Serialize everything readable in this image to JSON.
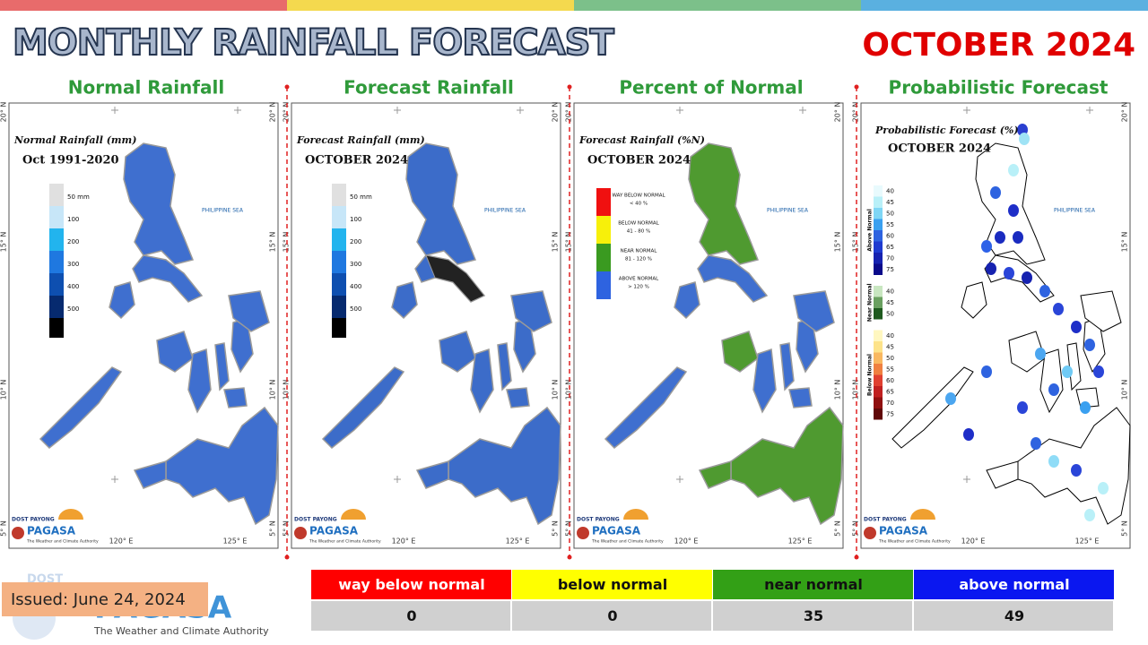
{
  "header": {
    "title": "MONTHLY RAINFALL FORECAST",
    "period": "OCTOBER 2024"
  },
  "panels": [
    {
      "title": "Normal Rainfall",
      "map_title": "Normal Rainfall (mm)",
      "map_subtitle": "Oct 1991-2020",
      "legend": [
        "50 mm",
        "100",
        "200",
        "300",
        "400",
        "500"
      ]
    },
    {
      "title": "Forecast Rainfall",
      "map_title": "Forecast Rainfall (mm)",
      "map_subtitle": "OCTOBER 2024",
      "legend": [
        "50 mm",
        "100",
        "200",
        "300",
        "400",
        "500"
      ]
    },
    {
      "title": "Percent of Normal",
      "map_title": "Forecast Rainfall (%N)",
      "map_subtitle": "OCTOBER 2024",
      "legend": [
        {
          "name": "WAY BELOW NORMAL",
          "range": "< 40 %"
        },
        {
          "name": "BELOW NORMAL",
          "range": "41 - 80 %"
        },
        {
          "name": "NEAR NORMAL",
          "range": "81 - 120 %"
        },
        {
          "name": "ABOVE NORMAL",
          "range": "> 120 %"
        }
      ]
    },
    {
      "title": "Probabilistic Forecast",
      "map_title": "Probabilistic Forecast (%)",
      "map_subtitle": "OCTOBER 2024",
      "legend_groups": [
        {
          "name": "Above Normal",
          "levels": [
            "40",
            "45",
            "50",
            "55",
            "60",
            "65",
            "70",
            "75"
          ]
        },
        {
          "name": "Near Normal",
          "levels": [
            "40",
            "45",
            "50"
          ]
        },
        {
          "name": "Below Normal",
          "levels": [
            "40",
            "45",
            "50",
            "55",
            "60",
            "65",
            "70",
            "75"
          ]
        }
      ]
    }
  ],
  "map_labels": {
    "lat": [
      "20° N",
      "15° N",
      "10° N",
      "5° N"
    ],
    "lon": [
      "120° E",
      "125° E"
    ],
    "sea": "PHILIPPINE SEA",
    "logo_top": "DOST PAYONG",
    "logo": "PAGASA",
    "logo_sub": "The Weather and Climate Authority"
  },
  "summary_table": {
    "header": [
      "way below normal",
      "below normal",
      "near normal",
      "above normal"
    ],
    "rows": [
      [
        0,
        0,
        35,
        49
      ]
    ]
  },
  "issued": "Issued: June 24, 2024",
  "footer_logo": {
    "top": "DOST",
    "name": "PAGASA",
    "tagline": "The Weather and Climate Authority"
  }
}
